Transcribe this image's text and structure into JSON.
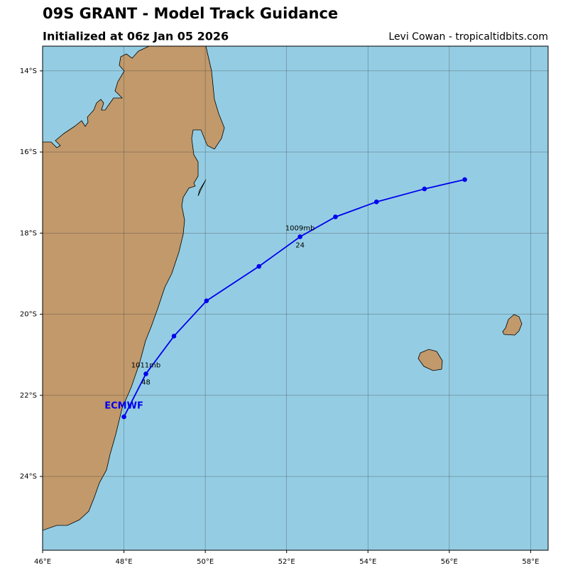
{
  "chart_data": {
    "type": "line",
    "title": "09S GRANT - Model Track Guidance",
    "subtitle": "Initialized at 06z Jan 05 2026",
    "credit": "Levi Cowan - tropicaltidbits.com",
    "x": [
      56.38,
      55.39,
      54.21,
      53.2,
      52.33,
      51.32,
      50.03,
      49.23,
      48.54,
      48.0
    ],
    "series": [
      {
        "name": "ECMWF",
        "color": "#0000ee",
        "values": [
          -16.68,
          -16.91,
          -17.23,
          -17.6,
          -18.09,
          -18.82,
          -19.67,
          -20.54,
          -21.47,
          -22.53
        ]
      }
    ],
    "pressure_labels": [
      null,
      null,
      null,
      null,
      "1009mb",
      null,
      null,
      null,
      "1011mb",
      null
    ],
    "hour_labels": [
      null,
      null,
      null,
      null,
      24,
      null,
      null,
      null,
      48,
      null
    ],
    "xlim": [
      46,
      58.43
    ],
    "ylim": [
      -25.82,
      -13.39
    ],
    "xticks": [
      {
        "value": 46,
        "label": "46°E"
      },
      {
        "value": 48,
        "label": "48°E"
      },
      {
        "value": 50,
        "label": "50°E"
      },
      {
        "value": 52,
        "label": "52°E"
      },
      {
        "value": 54,
        "label": "54°E"
      },
      {
        "value": 56,
        "label": "56°E"
      },
      {
        "value": 58,
        "label": "58°E"
      }
    ],
    "yticks": [
      {
        "value": -14,
        "label": "14°S"
      },
      {
        "value": -16,
        "label": "16°S"
      },
      {
        "value": -18,
        "label": "18°S"
      },
      {
        "value": -20,
        "label": "20°S"
      },
      {
        "value": -22,
        "label": "22°S"
      },
      {
        "value": -24,
        "label": "24°S"
      }
    ],
    "grid": true
  }
}
